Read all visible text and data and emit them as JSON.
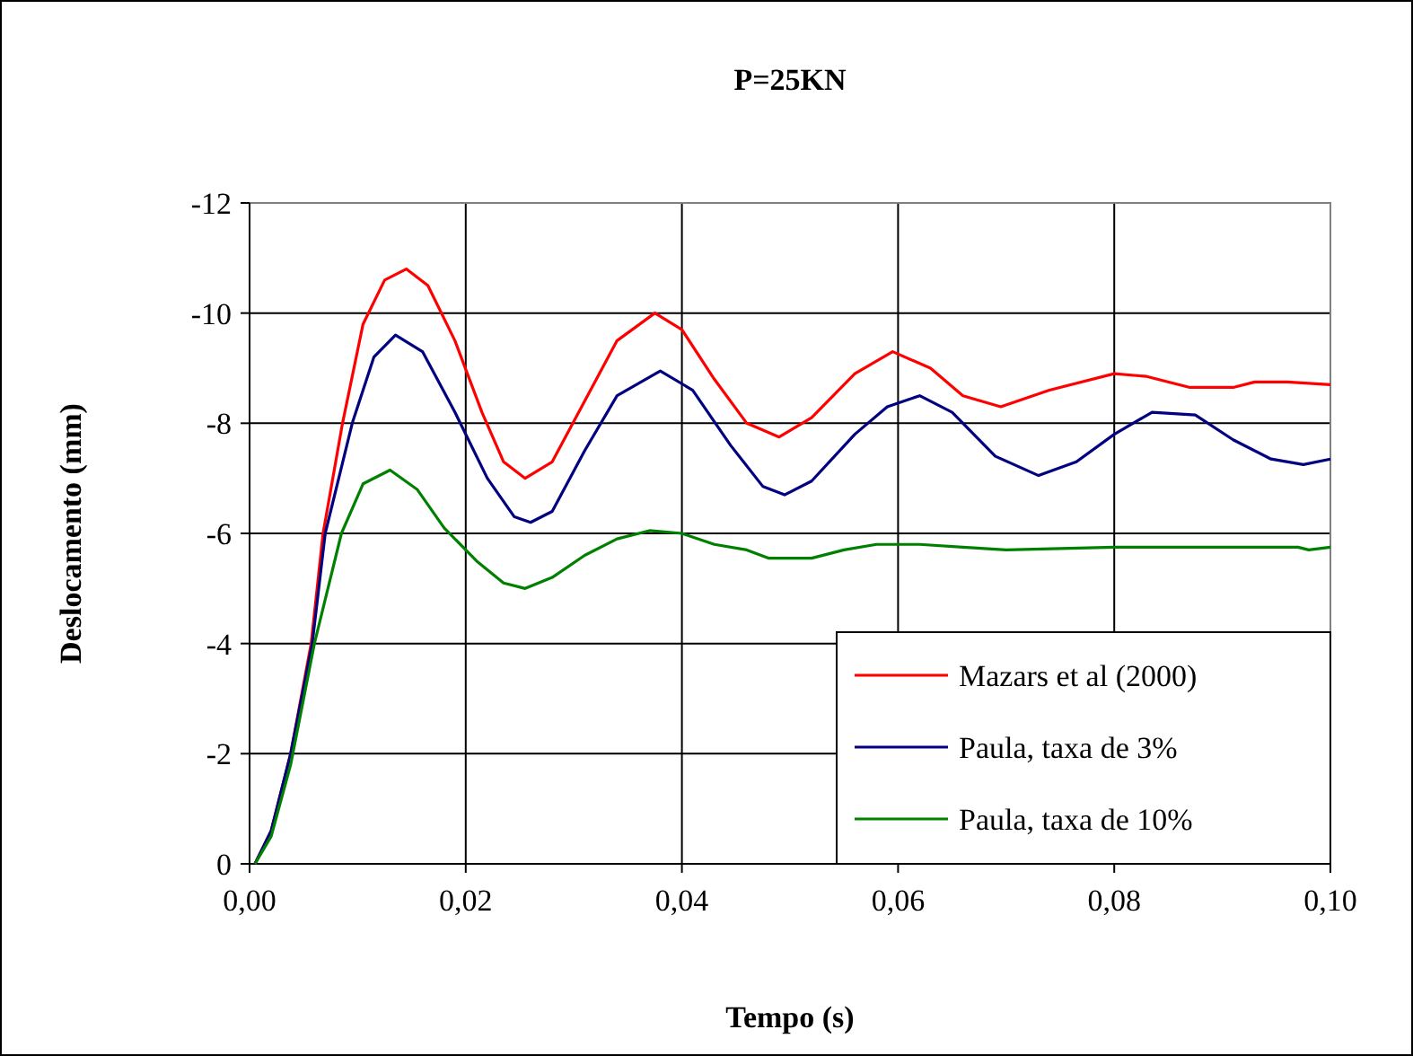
{
  "chart_data": {
    "type": "line",
    "title": "P=25KN",
    "xlabel": "Tempo (s)",
    "ylabel": "Deslocamento (mm)",
    "xlim": [
      0,
      0.1
    ],
    "xticks": [
      {
        "value": 0,
        "label": "0,00"
      },
      {
        "value": 0.02,
        "label": "0,02"
      },
      {
        "value": 0.04,
        "label": "0,04"
      },
      {
        "value": 0.06,
        "label": "0,06"
      },
      {
        "value": 0.08,
        "label": "0,08"
      },
      {
        "value": 0.1,
        "label": "0,10"
      }
    ],
    "ylim": [
      0,
      -12
    ],
    "yticks": [
      0,
      -2,
      -4,
      -6,
      -8,
      -10,
      -12
    ],
    "grid": true,
    "legend": "bottom right",
    "marker": "none",
    "line_style": "solid",
    "series": [
      {
        "name": "Mazars et al (2000)",
        "color": "#ff0000",
        "x": [
          0.0005,
          0.002,
          0.0038,
          0.0057,
          0.0068,
          0.0086,
          0.0105,
          0.0125,
          0.0145,
          0.0165,
          0.019,
          0.0215,
          0.0235,
          0.0255,
          0.028,
          0.031,
          0.034,
          0.0375,
          0.04,
          0.043,
          0.046,
          0.049,
          0.052,
          0.056,
          0.0595,
          0.063,
          0.066,
          0.0695,
          0.074,
          0.08,
          0.083,
          0.087,
          0.091,
          0.093,
          0.096,
          0.1
        ],
        "values": [
          0,
          -0.6,
          -2,
          -4,
          -6,
          -8,
          -9.8,
          -10.6,
          -10.8,
          -10.5,
          -9.5,
          -8.2,
          -7.3,
          -7,
          -7.3,
          -8.4,
          -9.5,
          -10,
          -9.7,
          -8.8,
          -8,
          -7.75,
          -8.1,
          -8.9,
          -9.3,
          -9,
          -8.5,
          -8.3,
          -8.6,
          -8.9,
          -8.85,
          -8.65,
          -8.65,
          -8.75,
          -8.75,
          -8.7
        ]
      },
      {
        "name": "Paula, taxa de 3%",
        "color": "#000080",
        "x": [
          0.0005,
          0.002,
          0.0038,
          0.0058,
          0.007,
          0.0095,
          0.0115,
          0.0135,
          0.016,
          0.019,
          0.022,
          0.0245,
          0.026,
          0.028,
          0.031,
          0.034,
          0.038,
          0.041,
          0.0445,
          0.0475,
          0.0495,
          0.052,
          0.056,
          0.059,
          0.062,
          0.065,
          0.069,
          0.073,
          0.0765,
          0.08,
          0.0835,
          0.0875,
          0.091,
          0.0945,
          0.0975,
          0.1
        ],
        "values": [
          0,
          -0.6,
          -2,
          -4,
          -6,
          -8,
          -9.2,
          -9.6,
          -9.3,
          -8.2,
          -7,
          -6.3,
          -6.2,
          -6.4,
          -7.5,
          -8.5,
          -8.95,
          -8.6,
          -7.6,
          -6.85,
          -6.7,
          -6.95,
          -7.8,
          -8.3,
          -8.5,
          -8.2,
          -7.4,
          -7.05,
          -7.3,
          -7.8,
          -8.2,
          -8.15,
          -7.7,
          -7.35,
          -7.25,
          -7.35
        ]
      },
      {
        "name": "Paula, taxa de 10%",
        "color": "#008000",
        "x": [
          0.0005,
          0.002,
          0.0038,
          0.006,
          0.0085,
          0.0105,
          0.013,
          0.0155,
          0.018,
          0.021,
          0.0235,
          0.0255,
          0.028,
          0.031,
          0.034,
          0.037,
          0.04,
          0.043,
          0.046,
          0.048,
          0.052,
          0.055,
          0.058,
          0.062,
          0.066,
          0.07,
          0.08,
          0.097,
          0.098,
          0.1
        ],
        "values": [
          0,
          -0.5,
          -1.8,
          -4,
          -6,
          -6.9,
          -7.15,
          -6.8,
          -6.1,
          -5.5,
          -5.1,
          -5,
          -5.2,
          -5.6,
          -5.9,
          -6.05,
          -6,
          -5.8,
          -5.7,
          -5.55,
          -5.55,
          -5.7,
          -5.8,
          -5.8,
          -5.75,
          -5.7,
          -5.75,
          -5.75,
          -5.7,
          -5.75
        ]
      }
    ]
  }
}
